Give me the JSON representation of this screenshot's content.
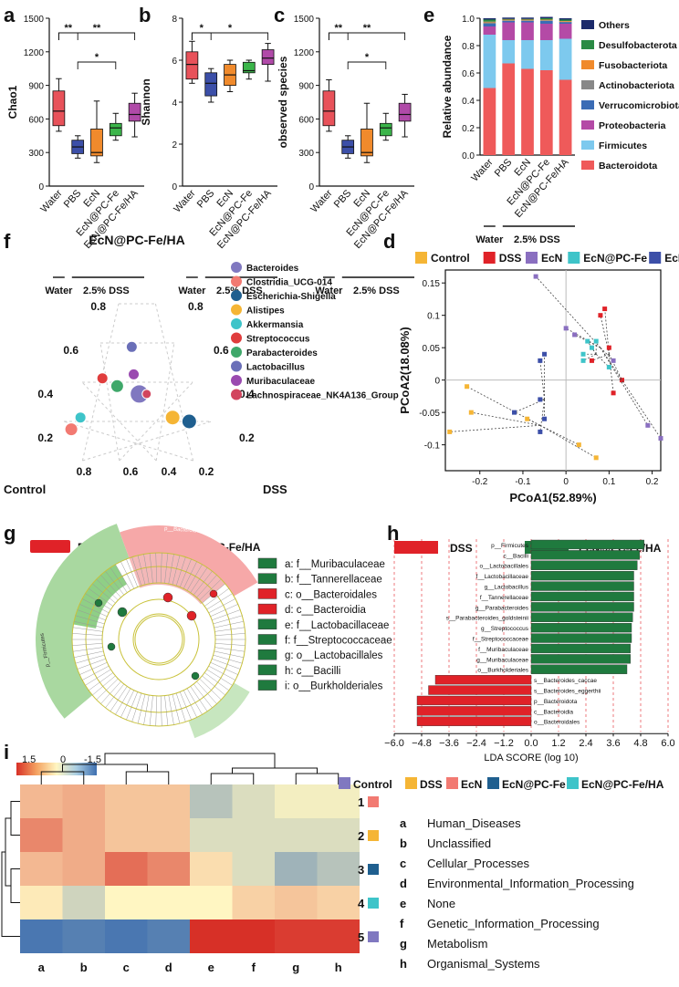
{
  "panel_labels": [
    "a",
    "b",
    "c",
    "d",
    "e",
    "f",
    "g",
    "h",
    "i"
  ],
  "colors": {
    "water": "#e8525a",
    "pbs": "#3c4fa8",
    "ecn": "#f08a2c",
    "ecn_fe": "#3bb54a",
    "ecn_fe_ha": "#b04aa8",
    "dss_red": "#e02228",
    "green": "#1f7a3e"
  },
  "box_groups": [
    "Water",
    "PBS",
    "EcN",
    "EcN@PC-Fe",
    "EcN@PC-Fe/HA"
  ],
  "group_bar": {
    "water": "Water",
    "dss": "2.5% DSS"
  },
  "chart_data": [
    {
      "id": "a",
      "type": "box",
      "ylabel": "Chao1",
      "yticks": [
        0,
        300,
        600,
        900,
        1200,
        1500
      ],
      "ylim": [
        0,
        1500
      ],
      "boxes": [
        {
          "group": "Water",
          "min": 490,
          "q1": 540,
          "median": 670,
          "q3": 850,
          "max": 960
        },
        {
          "group": "PBS",
          "min": 250,
          "q1": 290,
          "median": 350,
          "q3": 410,
          "max": 450
        },
        {
          "group": "EcN",
          "min": 210,
          "q1": 270,
          "median": 300,
          "q3": 510,
          "max": 760
        },
        {
          "group": "EcN@PC-Fe",
          "min": 410,
          "q1": 450,
          "median": 520,
          "q3": 560,
          "max": 650
        },
        {
          "group": "EcN@PC-Fe/HA",
          "min": 440,
          "q1": 580,
          "median": 640,
          "q3": 740,
          "max": 830
        }
      ],
      "sig": [
        {
          "from": "Water",
          "to": "PBS",
          "label": "**"
        },
        {
          "from": "Water",
          "to": "EcN@PC-Fe/HA",
          "label": "**"
        },
        {
          "from": "PBS",
          "to": "EcN@PC-Fe",
          "label": "*"
        }
      ]
    },
    {
      "id": "b",
      "type": "box",
      "ylabel": "Shannon",
      "yticks": [
        0,
        2,
        4,
        6,
        8
      ],
      "ylim": [
        0,
        8
      ],
      "boxes": [
        {
          "group": "Water",
          "min": 4.9,
          "q1": 5.1,
          "median": 5.8,
          "q3": 6.4,
          "max": 6.9
        },
        {
          "group": "PBS",
          "min": 4.0,
          "q1": 4.3,
          "median": 4.9,
          "q3": 5.4,
          "max": 5.6
        },
        {
          "group": "EcN",
          "min": 4.5,
          "q1": 4.8,
          "median": 5.3,
          "q3": 5.8,
          "max": 6.0
        },
        {
          "group": "EcN@PC-Fe",
          "min": 5.1,
          "q1": 5.4,
          "median": 5.5,
          "q3": 5.9,
          "max": 6.0
        },
        {
          "group": "EcN@PC-Fe/HA",
          "min": 5.0,
          "q1": 5.8,
          "median": 6.1,
          "q3": 6.5,
          "max": 6.8
        }
      ],
      "sig": [
        {
          "from": "Water",
          "to": "PBS",
          "label": "*"
        },
        {
          "from": "Water",
          "to": "EcN@PC-Fe/HA",
          "label": "*"
        }
      ]
    },
    {
      "id": "c",
      "type": "box",
      "ylabel": "observed species",
      "yticks": [
        0,
        300,
        600,
        900,
        1200,
        1500
      ],
      "ylim": [
        0,
        1500
      ],
      "boxes": [
        {
          "group": "Water",
          "min": 490,
          "q1": 540,
          "median": 670,
          "q3": 850,
          "max": 950
        },
        {
          "group": "PBS",
          "min": 250,
          "q1": 290,
          "median": 350,
          "q3": 410,
          "max": 450
        },
        {
          "group": "EcN",
          "min": 210,
          "q1": 270,
          "median": 300,
          "q3": 510,
          "max": 740
        },
        {
          "group": "EcN@PC-Fe",
          "min": 410,
          "q1": 450,
          "median": 520,
          "q3": 560,
          "max": 650
        },
        {
          "group": "EcN@PC-Fe/HA",
          "min": 440,
          "q1": 580,
          "median": 640,
          "q3": 740,
          "max": 820
        }
      ],
      "sig": [
        {
          "from": "Water",
          "to": "PBS",
          "label": "**"
        },
        {
          "from": "Water",
          "to": "EcN@PC-Fe/HA",
          "label": "**"
        },
        {
          "from": "PBS",
          "to": "EcN@PC-Fe",
          "label": "*"
        }
      ]
    },
    {
      "id": "e",
      "type": "stacked-bar",
      "ylabel": "Relative abundance",
      "yticks": [
        0.0,
        0.2,
        0.4,
        0.6,
        0.8,
        1.0
      ],
      "categories": [
        "Water",
        "PBS",
        "EcN",
        "EcN@PC-Fe",
        "EcN@PC-Fe/HA"
      ],
      "series": [
        {
          "name": "Bacteroidota",
          "color": "#ef5a5a",
          "values": [
            0.49,
            0.67,
            0.63,
            0.62,
            0.55
          ]
        },
        {
          "name": "Firmicutes",
          "color": "#7dc9ee",
          "values": [
            0.39,
            0.17,
            0.21,
            0.22,
            0.3
          ]
        },
        {
          "name": "Proteobacteria",
          "color": "#b44aa6",
          "values": [
            0.06,
            0.13,
            0.13,
            0.12,
            0.11
          ]
        },
        {
          "name": "Verrucomicrobiota",
          "color": "#3b6cb5",
          "values": [
            0.02,
            0.01,
            0.01,
            0.02,
            0.01
          ]
        },
        {
          "name": "Actinobacteriota",
          "color": "#888888",
          "values": [
            0.01,
            0.005,
            0.005,
            0.005,
            0.005
          ]
        },
        {
          "name": "Fusobacteriota",
          "color": "#f08a2c",
          "values": [
            0.005,
            0.005,
            0.005,
            0.005,
            0.005
          ]
        },
        {
          "name": "Desulfobacterota",
          "color": "#2a8a44",
          "values": [
            0.015,
            0.005,
            0.005,
            0.01,
            0.01
          ]
        },
        {
          "name": "Others",
          "color": "#1b2a6b",
          "values": [
            0.01,
            0.01,
            0.01,
            0.01,
            0.01
          ]
        }
      ]
    },
    {
      "id": "f",
      "type": "ternary",
      "top_label": "EcN@PC-Fe/HA",
      "left_label": "Control",
      "right_label": "DSS",
      "left_ticks": [
        "0.2",
        "0.4",
        "0.6",
        "0.8"
      ],
      "right_ticks": [
        "0.2",
        "0.4",
        "0.6",
        "0.8"
      ],
      "bottom_ticks": [
        "0.8",
        "0.6",
        "0.4",
        "0.2"
      ],
      "legend": [
        {
          "name": "Bacteroides",
          "color": "#8078c0"
        },
        {
          "name": "Clostridia_UCG-014",
          "color": "#f27a72"
        },
        {
          "name": "Escherichia-Shigella",
          "color": "#1f5f8f"
        },
        {
          "name": "Alistipes",
          "color": "#f5b535"
        },
        {
          "name": "Akkermansia",
          "color": "#3ec4c9"
        },
        {
          "name": "Streptococcus",
          "color": "#e03d3d"
        },
        {
          "name": "Parabacteroides",
          "color": "#3fa86a"
        },
        {
          "name": "Lactobacillus",
          "color": "#6a6fb8"
        },
        {
          "name": "Muribaculaceae",
          "color": "#9a4ab0"
        },
        {
          "name": "Lachnospiraceae_NK4A136_Group",
          "color": "#d2455e"
        }
      ],
      "points": [
        {
          "name": "Bacteroides",
          "control": 0.32,
          "dss": 0.34,
          "ha": 0.34,
          "size": 10
        },
        {
          "name": "Clostridia_UCG-014",
          "control": 0.78,
          "dss": 0.06,
          "ha": 0.16,
          "size": 7
        },
        {
          "name": "Escherichia-Shigella",
          "control": 0.12,
          "dss": 0.68,
          "ha": 0.2,
          "size": 8
        },
        {
          "name": "Alistipes",
          "control": 0.2,
          "dss": 0.58,
          "ha": 0.22,
          "size": 8
        },
        {
          "name": "Akkermansia",
          "control": 0.7,
          "dss": 0.08,
          "ha": 0.22,
          "size": 6
        },
        {
          "name": "Streptococcus",
          "control": 0.48,
          "dss": 0.1,
          "ha": 0.42,
          "size": 6
        },
        {
          "name": "Parabacteroides",
          "control": 0.42,
          "dss": 0.2,
          "ha": 0.38,
          "size": 7
        },
        {
          "name": "Lactobacillus",
          "control": 0.24,
          "dss": 0.18,
          "ha": 0.58,
          "size": 6
        },
        {
          "name": "Muribaculaceae",
          "control": 0.3,
          "dss": 0.26,
          "ha": 0.44,
          "size": 6
        },
        {
          "name": "Lachnospiraceae_NK4A136_Group",
          "control": 0.28,
          "dss": 0.38,
          "ha": 0.34,
          "size": 5
        }
      ]
    },
    {
      "id": "d",
      "type": "scatter",
      "xlabel": "PCoA1(52.89%)",
      "ylabel": "PCoA2(18.08%)",
      "xlim": [
        -0.28,
        0.22
      ],
      "ylim": [
        -0.14,
        0.17
      ],
      "xticks": [
        -0.2,
        -0.1,
        0,
        0.1,
        0.2
      ],
      "yticks": [
        -0.1,
        -0.05,
        0,
        0.05,
        0.1,
        0.15
      ],
      "legend": [
        {
          "name": "Control",
          "color": "#f5b535"
        },
        {
          "name": "DSS",
          "color": "#e02228"
        },
        {
          "name": "EcN",
          "color": "#8a6fc0"
        },
        {
          "name": "EcN@PC-Fe",
          "color": "#3ec4c9"
        },
        {
          "name": "EcN@PC-Fe/HA",
          "color": "#3c4fa8"
        }
      ],
      "series": [
        {
          "name": "Control",
          "centroid": [
            -0.06,
            -0.07
          ],
          "x": [
            -0.23,
            -0.22,
            -0.27,
            0.07,
            0.03,
            -0.09
          ],
          "y": [
            -0.01,
            -0.05,
            -0.08,
            -0.12,
            -0.1,
            -0.06
          ]
        },
        {
          "name": "DSS",
          "centroid": [
            0.1,
            0.04
          ],
          "x": [
            0.09,
            0.08,
            0.13,
            0.1,
            0.06,
            0.11
          ],
          "y": [
            0.11,
            0.1,
            0,
            0.05,
            0.03,
            -0.02
          ]
        },
        {
          "name": "EcN",
          "centroid": [
            0.08,
            0.05
          ],
          "x": [
            -0.07,
            0.22,
            0.19,
            0.11,
            0.02,
            0.0
          ],
          "y": [
            0.16,
            -0.09,
            -0.07,
            0.03,
            0.07,
            0.08
          ]
        },
        {
          "name": "EcN@PC-Fe",
          "centroid": [
            0.07,
            0.04
          ],
          "x": [
            0.05,
            0.06,
            0.04,
            0.1,
            0.07,
            0.04
          ],
          "y": [
            0.06,
            0.05,
            0.04,
            0.02,
            0.06,
            0.03
          ]
        },
        {
          "name": "EcN@PC-Fe/HA",
          "centroid": [
            -0.05,
            -0.03
          ],
          "x": [
            -0.05,
            -0.06,
            -0.06,
            -0.12,
            -0.05,
            -0.06
          ],
          "y": [
            0.04,
            0.03,
            -0.03,
            -0.05,
            -0.06,
            -0.08
          ]
        }
      ]
    },
    {
      "id": "g",
      "type": "cladogram",
      "legend": [
        {
          "name": "DSS",
          "color": "#e02228"
        },
        {
          "name": "EcN@PC-Fe/HA",
          "color": "#1f7a3e"
        }
      ],
      "clade_labels": [
        {
          "key": "a",
          "text": "f__Muribaculaceae",
          "color": "#1f7a3e"
        },
        {
          "key": "b",
          "text": "f__Tannerellaceae",
          "color": "#1f7a3e"
        },
        {
          "key": "c",
          "text": "o__Bacteroidales",
          "color": "#e02228"
        },
        {
          "key": "d",
          "text": "c__Bacteroidia",
          "color": "#e02228"
        },
        {
          "key": "e",
          "text": "f__Lactobacillaceae",
          "color": "#1f7a3e"
        },
        {
          "key": "f",
          "text": "f__Streptococcaceae",
          "color": "#1f7a3e"
        },
        {
          "key": "g",
          "text": "o__Lactobacillales",
          "color": "#1f7a3e"
        },
        {
          "key": "h",
          "text": "c__Bacilli",
          "color": "#1f7a3e"
        },
        {
          "key": "i",
          "text": "o__Burkholderiales",
          "color": "#1f7a3e"
        }
      ],
      "arc_labels": {
        "red": "p__Bacteroidota",
        "green": "p__Firmicutes"
      }
    },
    {
      "id": "h",
      "type": "horizontal-bar",
      "xlabel": "LDA SCORE (log 10)",
      "xlim": [
        -6.0,
        6.0
      ],
      "xticks": [
        -6.0,
        -4.8,
        -3.6,
        -2.4,
        -1.2,
        0.0,
        1.2,
        2.4,
        3.6,
        4.8,
        6.0
      ],
      "legend": [
        {
          "name": "DSS",
          "color": "#e02228"
        },
        {
          "name": "EcN@PC-Fe/HA",
          "color": "#1f7a3e"
        }
      ],
      "categories": [
        "p__Firmicutes",
        "c__Bacilli",
        "o__Lactobacillales",
        "f__Lactobacillaceae",
        "g__Lactobacillus",
        "f__Tannerellaceae",
        "g__Parabacteroides",
        "s__Parabacteroides_goldsteinii",
        "g__Streptococcus",
        "f__Streptococcaceae",
        "f__Muribaculaceae",
        "g__Muribaculaceae",
        "o__Burkholderiales",
        "s__Bacteroides_caccae",
        "s__Bacteroides_eggerthii",
        "p__Bacteroidota",
        "c__Bacteroidia",
        "o__Bacteroidales"
      ],
      "values": [
        4.95,
        4.75,
        4.65,
        4.5,
        4.5,
        4.5,
        4.5,
        4.45,
        4.4,
        4.4,
        4.35,
        4.35,
        4.2,
        -4.2,
        -4.5,
        -5.0,
        -5.0,
        -5.0
      ]
    },
    {
      "id": "i",
      "type": "heatmap",
      "scale_labels": [
        "1.5",
        "0",
        "-1.5"
      ],
      "columns": [
        "a",
        "b",
        "c",
        "d",
        "e",
        "f",
        "g",
        "h"
      ],
      "rows": [
        "1",
        "2",
        "3",
        "4",
        "5"
      ],
      "row_groups": [
        {
          "row": "1",
          "group": "EcN",
          "color": "#f27a72"
        },
        {
          "row": "2",
          "group": "DSS",
          "color": "#f5b535"
        },
        {
          "row": "3",
          "group": "EcN@PC-Fe",
          "color": "#1f5f8f"
        },
        {
          "row": "4",
          "group": "EcN@PC-Fe/HA",
          "color": "#3ec4c9"
        },
        {
          "row": "5",
          "group": "Control",
          "color": "#8078c0"
        }
      ],
      "legend": [
        {
          "name": "Control",
          "color": "#8078c0"
        },
        {
          "name": "DSS",
          "color": "#f5b535"
        },
        {
          "name": "EcN",
          "color": "#f27a72"
        },
        {
          "name": "EcN@PC-Fe",
          "color": "#1f5f8f"
        },
        {
          "name": "EcN@PC-Fe/HA",
          "color": "#3ec4c9"
        }
      ],
      "column_labels": [
        {
          "key": "a",
          "text": "Human_Diseases"
        },
        {
          "key": "b",
          "text": "Unclassified"
        },
        {
          "key": "c",
          "text": "Cellular_Processes"
        },
        {
          "key": "d",
          "text": "Environmental_Information_Processing"
        },
        {
          "key": "e",
          "text": "None"
        },
        {
          "key": "f",
          "text": "Genetic_Information_Processing"
        },
        {
          "key": "g",
          "text": "Metabolism"
        },
        {
          "key": "h",
          "text": "Organismal_Systems"
        }
      ],
      "values": [
        [
          0.5,
          0.6,
          0.4,
          0.4,
          -0.6,
          -0.3,
          -0.1,
          -0.1
        ],
        [
          0.9,
          0.6,
          0.4,
          0.4,
          -0.3,
          -0.3,
          -0.3,
          -0.3
        ],
        [
          0.5,
          0.6,
          1.1,
          0.9,
          0.2,
          -0.3,
          -0.8,
          -0.6
        ],
        [
          0.1,
          -0.4,
          0.0,
          0.0,
          0.0,
          0.3,
          0.4,
          0.3
        ],
        [
          -1.5,
          -1.4,
          -1.5,
          -1.4,
          1.6,
          1.6,
          1.5,
          1.5
        ]
      ]
    }
  ]
}
